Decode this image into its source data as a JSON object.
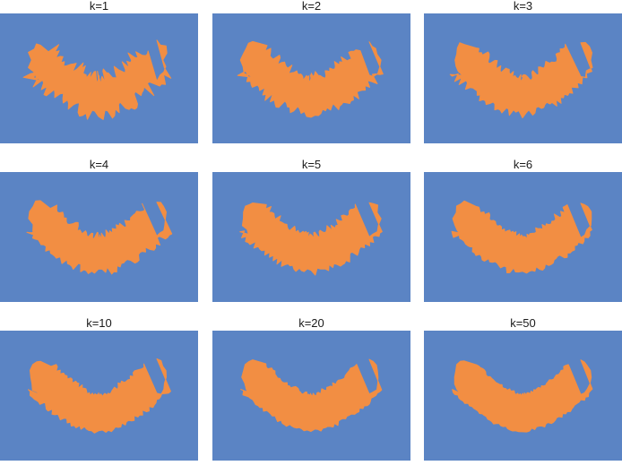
{
  "figure": {
    "colors": {
      "background_class": "#5b84c4",
      "region_class": "#f28e43"
    }
  },
  "chart_data": [
    {
      "type": "decision-region",
      "title": "k=1",
      "k": 1,
      "smoothness": 1
    },
    {
      "type": "decision-region",
      "title": "k=2",
      "k": 2,
      "smoothness": 2
    },
    {
      "type": "decision-region",
      "title": "k=3",
      "k": 3,
      "smoothness": 3
    },
    {
      "type": "decision-region",
      "title": "k=4",
      "k": 4,
      "smoothness": 4
    },
    {
      "type": "decision-region",
      "title": "k=5",
      "k": 5,
      "smoothness": 5
    },
    {
      "type": "decision-region",
      "title": "k=6",
      "k": 6,
      "smoothness": 6
    },
    {
      "type": "decision-region",
      "title": "k=10",
      "k": 10,
      "smoothness": 10
    },
    {
      "type": "decision-region",
      "title": "k=20",
      "k": 20,
      "smoothness": 20
    },
    {
      "type": "decision-region",
      "title": "k=50",
      "k": 50,
      "smoothness": 50
    }
  ]
}
